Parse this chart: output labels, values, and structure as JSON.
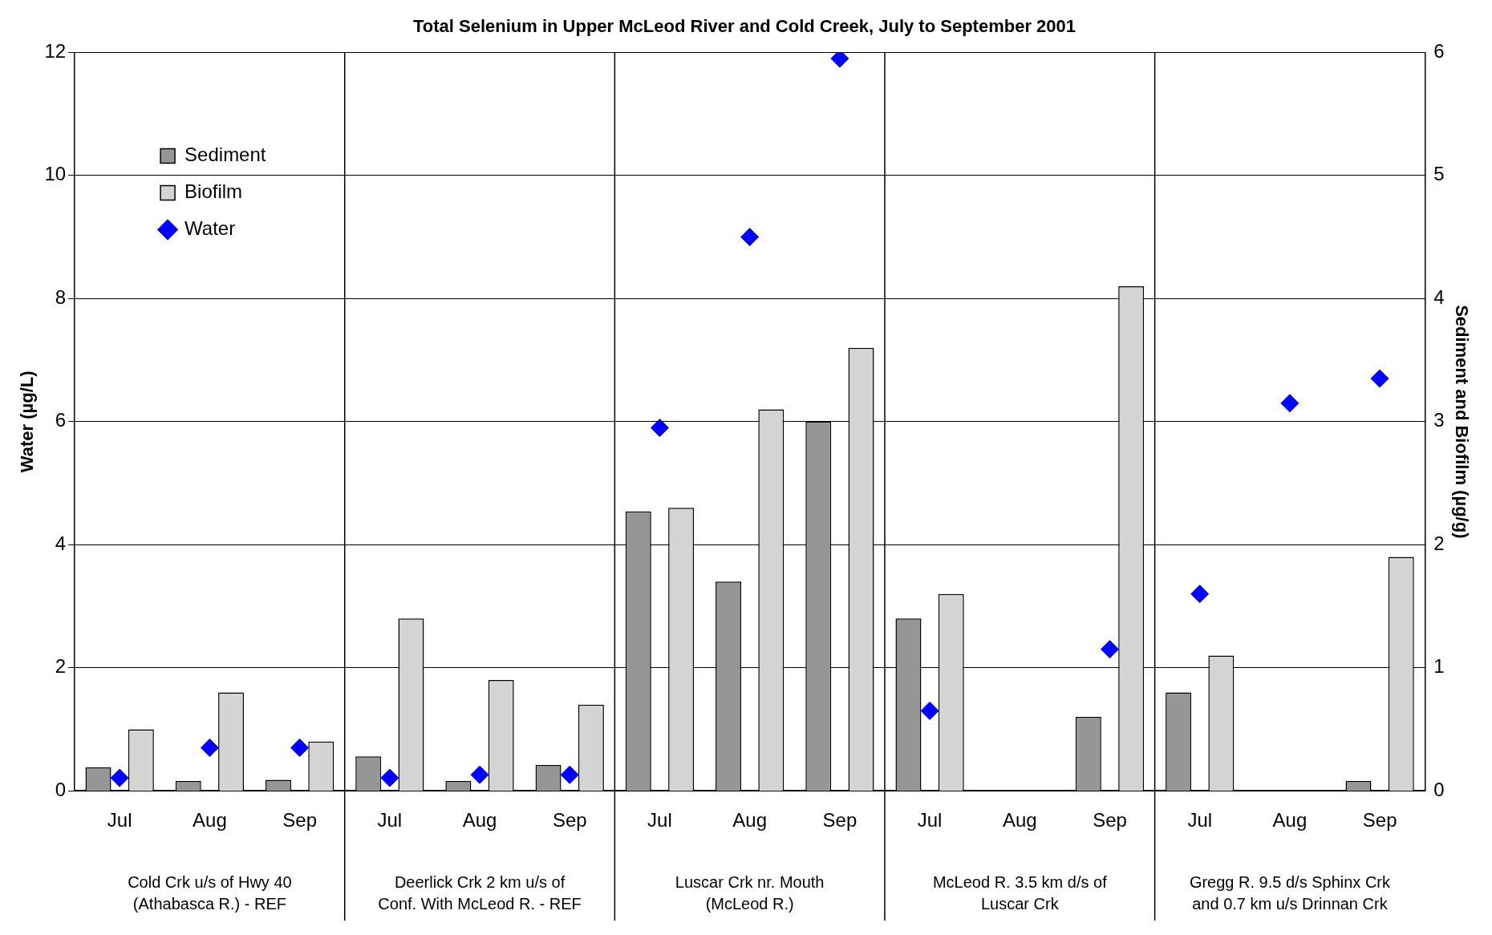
{
  "chart_data": {
    "type": "bar",
    "title": "Total Selenium in Upper McLeod River and Cold Creek, July to September 2001",
    "ylabel": "Water (µg/L)",
    "y2label": "Sediment and Biofilm (µg/g)",
    "categories": [
      "Jul",
      "Aug",
      "Sep",
      "Jul",
      "Aug",
      "Sep",
      "Jul",
      "Aug",
      "Sep",
      "Jul",
      "Aug",
      "Sep",
      "Jul",
      "Aug",
      "Sep"
    ],
    "annotations": [
      "Cold Crk u/s of Hwy 40\n(Athabasca R.) - REF",
      "Deerlick Crk 2 km u/s of\nConf. With McLeod R. - REF",
      "Luscar Crk nr. Mouth\n(McLeod R.)",
      "McLeod R. 3.5 km d/s of\nLuscar Crk",
      "Gregg R. 9.5 d/s Sphinx Crk\nand 0.7 km u/s Drinnan Crk"
    ],
    "series": [
      {
        "name": "Sediment",
        "axis": "y2",
        "color": "#969696",
        "values": [
          0.19,
          0.08,
          0.09,
          0.28,
          0.08,
          0.21,
          2.27,
          1.7,
          3.0,
          1.4,
          null,
          0.6,
          0.8,
          null,
          0.08
        ]
      },
      {
        "name": "Biofilm",
        "axis": "y2",
        "color": "#d4d4d4",
        "values": [
          0.5,
          0.8,
          0.4,
          1.4,
          0.9,
          0.7,
          2.3,
          3.1,
          3.6,
          1.6,
          null,
          4.1,
          1.1,
          null,
          1.9
        ]
      },
      {
        "name": "Water",
        "type": "scatter",
        "marker": "diamond",
        "color": "#0000ff",
        "values": [
          0.21,
          0.7,
          0.7,
          0.21,
          0.26,
          0.26,
          5.9,
          9.0,
          11.9,
          1.3,
          null,
          2.3,
          3.2,
          6.3,
          6.7
        ]
      }
    ],
    "ylim": [
      0,
      12
    ],
    "yticks": [
      0,
      2,
      4,
      6,
      8,
      10,
      12
    ],
    "y2lim": [
      0,
      6
    ],
    "y2ticks": [
      0,
      1,
      2,
      3,
      4,
      5,
      6
    ],
    "grid": "y",
    "legend": "top left"
  }
}
